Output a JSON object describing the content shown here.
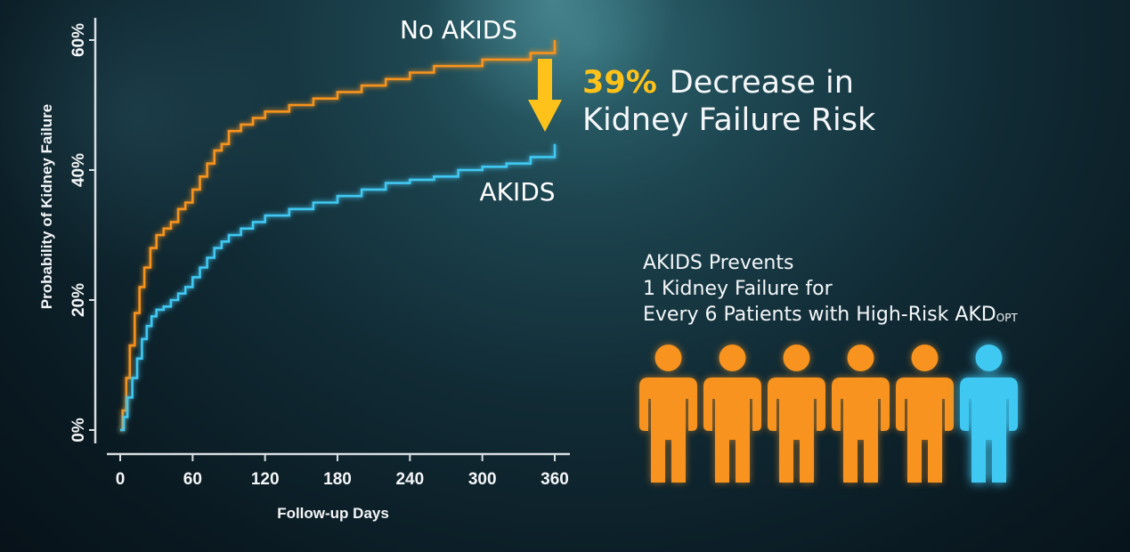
{
  "colors": {
    "no_akids": "#f7931e",
    "akids": "#3fc8f2",
    "highlight": "#ffc21a",
    "text": "#f4f7f9"
  },
  "chart_data": {
    "type": "line",
    "xlabel": "Follow-up Days",
    "ylabel": "Probability of Kidney Failure",
    "xlim": [
      0,
      360
    ],
    "ylim": [
      0,
      0.6
    ],
    "xticks": [
      "0",
      "60",
      "120",
      "180",
      "240",
      "300",
      "360"
    ],
    "yticks": [
      "0%",
      "20%",
      "40%",
      "60%"
    ],
    "grid": false,
    "series": [
      {
        "name": "No AKIDS",
        "color": "#f7931e",
        "x": [
          0,
          2,
          5,
          8,
          12,
          16,
          20,
          25,
          30,
          36,
          42,
          48,
          54,
          60,
          66,
          72,
          78,
          84,
          90,
          100,
          110,
          120,
          140,
          160,
          180,
          200,
          220,
          240,
          260,
          280,
          300,
          320,
          340,
          360
        ],
        "y": [
          0.0,
          0.03,
          0.08,
          0.13,
          0.18,
          0.22,
          0.25,
          0.28,
          0.3,
          0.31,
          0.32,
          0.34,
          0.35,
          0.37,
          0.39,
          0.41,
          0.43,
          0.44,
          0.46,
          0.47,
          0.48,
          0.49,
          0.5,
          0.51,
          0.52,
          0.53,
          0.54,
          0.55,
          0.56,
          0.56,
          0.57,
          0.57,
          0.58,
          0.6
        ]
      },
      {
        "name": "AKIDS",
        "color": "#3fc8f2",
        "x": [
          0,
          3,
          6,
          10,
          14,
          18,
          22,
          26,
          30,
          36,
          42,
          48,
          54,
          60,
          66,
          72,
          78,
          84,
          90,
          100,
          110,
          120,
          140,
          160,
          180,
          200,
          220,
          240,
          260,
          280,
          300,
          320,
          340,
          360
        ],
        "y": [
          0.0,
          0.02,
          0.05,
          0.08,
          0.11,
          0.14,
          0.16,
          0.175,
          0.185,
          0.19,
          0.2,
          0.21,
          0.22,
          0.235,
          0.25,
          0.265,
          0.28,
          0.29,
          0.3,
          0.31,
          0.32,
          0.33,
          0.34,
          0.35,
          0.36,
          0.37,
          0.38,
          0.385,
          0.39,
          0.4,
          0.405,
          0.41,
          0.42,
          0.44
        ]
      }
    ],
    "annotations": [
      "No AKIDS",
      "AKIDS"
    ]
  },
  "headline": {
    "percent": "39%",
    "line1_rest": "Decrease in",
    "line2": "Kidney Failure Risk"
  },
  "prevents": {
    "line1": "AKIDS Prevents",
    "line2": "1 Kidney Failure for",
    "line3_main": "Every 6 Patients with High-Risk AKD",
    "line3_sub": "OPT"
  },
  "people": {
    "icon": "person-icon",
    "count": 6,
    "colors": [
      "#f7931e",
      "#f7931e",
      "#f7931e",
      "#f7931e",
      "#f7931e",
      "#3fc8f2"
    ]
  },
  "arrow": {
    "icon": "down-arrow-icon",
    "color": "#ffc21a"
  }
}
